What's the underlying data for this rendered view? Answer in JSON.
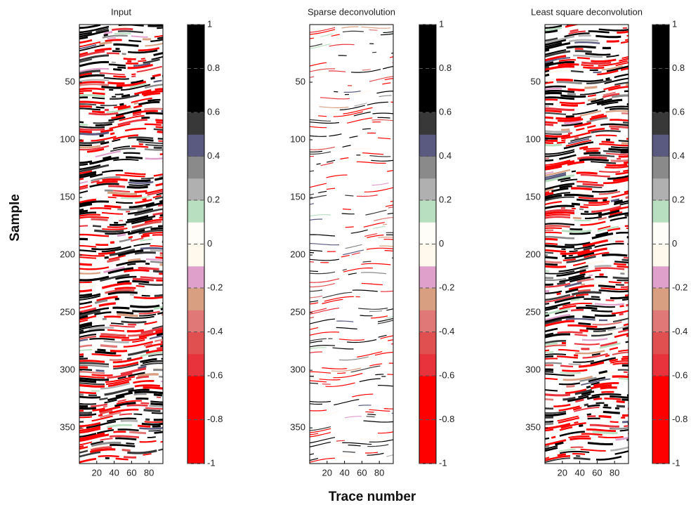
{
  "figure": {
    "xlabel": "Trace number",
    "ylabel": "Sample"
  },
  "chart_data": [
    {
      "type": "heatmap",
      "title": "Input",
      "xlim": [
        0,
        96
      ],
      "xticks": [
        20,
        40,
        60,
        80
      ],
      "ylim": [
        0,
        381
      ],
      "yticks": [
        50,
        100,
        150,
        200,
        250,
        300,
        350
      ],
      "clim": [
        -1,
        1
      ],
      "cticks": [
        1,
        0.8,
        0.6,
        0.4,
        0.2,
        0,
        -0.2,
        -0.4,
        -0.6,
        -0.8,
        -1
      ]
    },
    {
      "type": "heatmap",
      "title": "Sparse deconvolution",
      "xlim": [
        0,
        96
      ],
      "xticks": [
        20,
        40,
        60,
        80
      ],
      "ylim": [
        0,
        381
      ],
      "yticks": [
        50,
        100,
        150,
        200,
        250,
        300,
        350
      ],
      "clim": [
        -1,
        1
      ],
      "cticks": [
        1,
        0.8,
        0.6,
        0.4,
        0.2,
        0,
        -0.2,
        -0.4,
        -0.6,
        -0.8,
        -1
      ]
    },
    {
      "type": "heatmap",
      "title": "Least square deconvolution",
      "xlim": [
        0,
        96
      ],
      "xticks": [
        20,
        40,
        60,
        80
      ],
      "ylim": [
        0,
        381
      ],
      "yticks": [
        50,
        100,
        150,
        200,
        250,
        300,
        350
      ],
      "clim": [
        -1,
        1
      ],
      "cticks": [
        1,
        0.8,
        0.6,
        0.4,
        0.2,
        0,
        -0.2,
        -0.4,
        -0.6,
        -0.8,
        -1
      ]
    }
  ],
  "colormap": [
    "#ff0000",
    "#ff0000",
    "#ff0000",
    "#ff0000",
    "#e8323c",
    "#e05050",
    "#e07878",
    "#d8a080",
    "#e0a0cc",
    "#fff8ec",
    "#fffdf8",
    "#b8e0c0",
    "#b0b0b0",
    "#8a8a8a",
    "#5a5a80",
    "#383838",
    "#000000",
    "#000000",
    "#000000",
    "#000000"
  ]
}
